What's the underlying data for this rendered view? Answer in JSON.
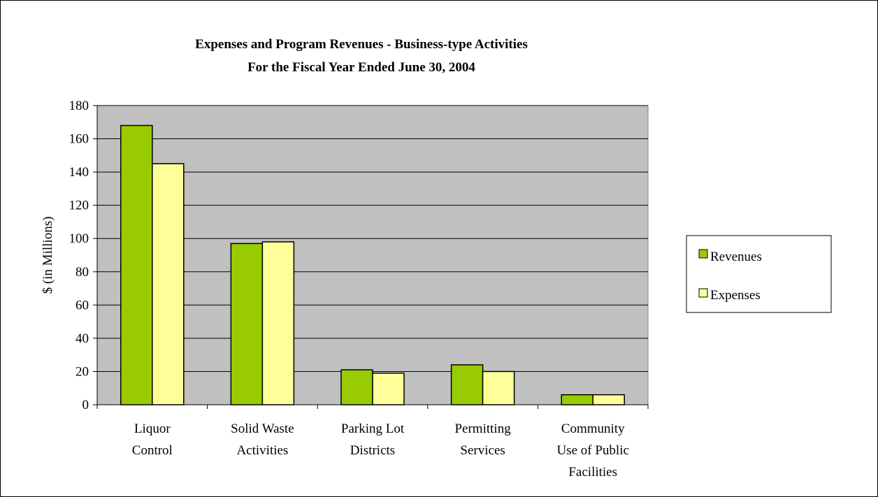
{
  "chart_data": {
    "type": "bar",
    "title": "Expenses and Program Revenues - Business-type Activities",
    "subtitle": "For the Fiscal Year Ended June 30, 2004",
    "xlabel": "",
    "ylabel": "$ (in Millions)",
    "ylim": [
      0,
      180
    ],
    "yticks": [
      "0",
      "20",
      "40",
      "60",
      "80",
      "100",
      "120",
      "140",
      "160",
      "180"
    ],
    "grid": true,
    "legend_position": "right",
    "categories": [
      [
        "Liquor",
        "Control"
      ],
      [
        "Solid Waste",
        "Activities"
      ],
      [
        "Parking Lot",
        "Districts"
      ],
      [
        "Permitting",
        "Services"
      ],
      [
        "Community",
        "Use of Public",
        "Facilities"
      ]
    ],
    "series": [
      {
        "name": "Revenues",
        "color": "#99cc00",
        "values": [
          168,
          97,
          21,
          24,
          6
        ]
      },
      {
        "name": "Expenses",
        "color": "#ffff99",
        "values": [
          145,
          98,
          19,
          20,
          6
        ]
      }
    ],
    "plot_background": "#c0c0c0"
  }
}
